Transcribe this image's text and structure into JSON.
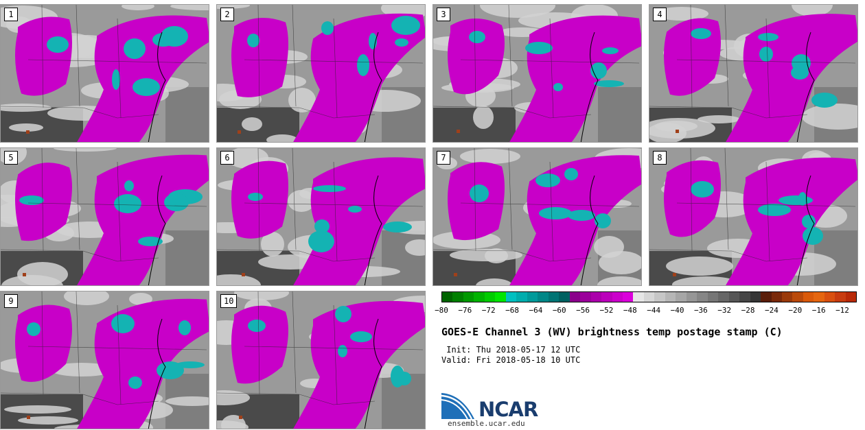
{
  "panels": [
    {
      "label": "1"
    },
    {
      "label": "2"
    },
    {
      "label": "3"
    },
    {
      "label": "4"
    },
    {
      "label": "5"
    },
    {
      "label": "6"
    },
    {
      "label": "7"
    },
    {
      "label": "8"
    },
    {
      "label": "9"
    },
    {
      "label": "10"
    }
  ],
  "colorbar": {
    "colors": [
      "#006400",
      "#007f00",
      "#009900",
      "#00b300",
      "#00cc00",
      "#00e600",
      "#00c0c0",
      "#00adad",
      "#009a9a",
      "#008787",
      "#007474",
      "#006161",
      "#8b008b",
      "#9b009b",
      "#ab00ab",
      "#bb00bb",
      "#cb00cb",
      "#db00db",
      "#e6e6e6",
      "#d6d6d6",
      "#c6c6c6",
      "#b6b6b6",
      "#a6a6a6",
      "#969696",
      "#868686",
      "#767676",
      "#666666",
      "#565656",
      "#464646",
      "#363636",
      "#5a1e0a",
      "#7a2a0a",
      "#9a3a0a",
      "#ba4a0a",
      "#da5a0a",
      "#e56610",
      "#d95010",
      "#c83c10",
      "#b82a08"
    ],
    "ticks": [
      "−80",
      "−76",
      "−72",
      "−68",
      "−64",
      "−60",
      "−56",
      "−52",
      "−48",
      "−44",
      "−40",
      "−36",
      "−32",
      "−28",
      "−24",
      "−20",
      "−16",
      "−12"
    ]
  },
  "title": "GOES-E Channel 3 (WV) brightness temp postage stamp (C)",
  "init": " Init: Thu 2018-05-17 12 UTC",
  "valid": "Valid: Fri 2018-05-18 10 UTC",
  "logo": {
    "text": "NCAR",
    "url_text": "ensemble.ucar.edu",
    "brand_color": "#1a3d6e"
  }
}
